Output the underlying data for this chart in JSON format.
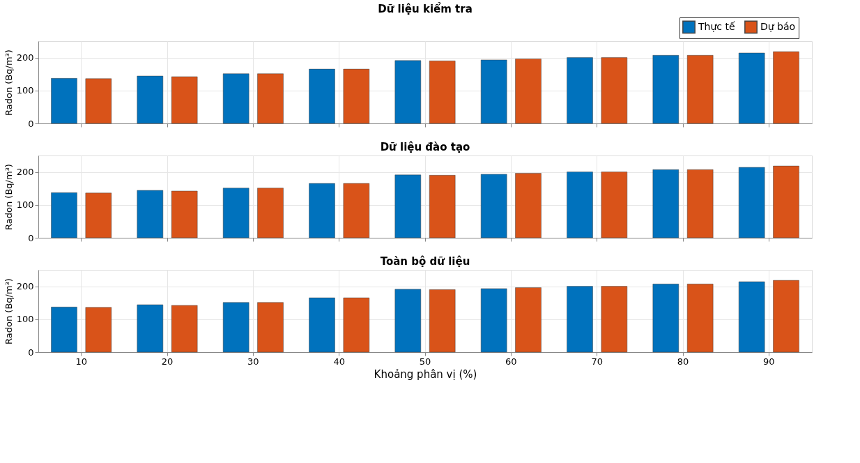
{
  "chart_data": [
    {
      "type": "bar",
      "title": "Dữ liệu kiểm tra",
      "ylabel": "Radon (Bq/m³)",
      "categories": [
        "10",
        "20",
        "30",
        "40",
        "50",
        "60",
        "70",
        "80",
        "90"
      ],
      "series": [
        {
          "name": "Thực tế",
          "color": "#0072bd",
          "values": [
            137,
            144,
            151,
            165,
            191,
            193,
            200,
            207,
            214
          ]
        },
        {
          "name": "Dự báo",
          "color": "#d95319",
          "values": [
            136,
            142,
            151,
            165,
            190,
            196,
            200,
            207,
            218
          ]
        }
      ],
      "ylim": [
        0,
        250
      ],
      "yticks": [
        0,
        100,
        200
      ],
      "grid": true,
      "tick_labels": "y",
      "legend": "top right"
    },
    {
      "type": "bar",
      "title": "Dữ liệu đào tạo",
      "ylabel": "Radon (Bq/m³)",
      "categories": [
        "10",
        "20",
        "30",
        "40",
        "50",
        "60",
        "70",
        "80",
        "90"
      ],
      "series": [
        {
          "color": "#0072bd",
          "values": [
            137,
            144,
            151,
            165,
            191,
            193,
            200,
            207,
            214
          ]
        },
        {
          "color": "#d95319",
          "values": [
            136,
            142,
            151,
            165,
            190,
            196,
            200,
            207,
            218
          ]
        }
      ],
      "ylim": [
        0,
        250
      ],
      "yticks": [
        0,
        100,
        200
      ],
      "grid": true,
      "tick_labels": "y"
    },
    {
      "type": "bar",
      "title": "Toàn bộ dữ liệu",
      "ylabel": "Radon (Bq/m³)",
      "xlabel": "Khoảng phân vị (%)",
      "categories": [
        "10",
        "20",
        "30",
        "40",
        "50",
        "60",
        "70",
        "80",
        "90"
      ],
      "series": [
        {
          "color": "#0072bd",
          "values": [
            137,
            144,
            151,
            165,
            191,
            193,
            200,
            207,
            214
          ]
        },
        {
          "color": "#d95319",
          "values": [
            136,
            142,
            151,
            165,
            190,
            196,
            200,
            207,
            218
          ]
        }
      ],
      "ylim": [
        0,
        250
      ],
      "yticks": [
        0,
        100,
        200
      ],
      "grid": true
    }
  ]
}
